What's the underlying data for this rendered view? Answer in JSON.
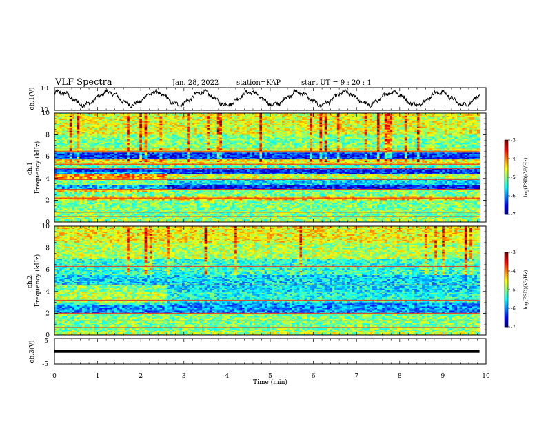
{
  "header": {
    "title": "VLF Spectra",
    "date": "Jan. 28, 2022",
    "station": "station=KAP",
    "start": "start UT = 9 : 20 : 1"
  },
  "chart_data": [
    {
      "type": "line",
      "panel": "ch1",
      "ylabel": "ch.1(V)",
      "ylim": [
        -10,
        10
      ],
      "yticks": [
        "10",
        "-10"
      ],
      "xlim": [
        0,
        10
      ],
      "x_end": 9.85,
      "period_min": 1.1,
      "amplitude_v": 5.5,
      "offset_v": 0.5,
      "color": "#000000"
    },
    {
      "type": "heatmap",
      "panel": "ch1-spectrogram",
      "ylabel": "ch.1 Frequency (kHz)",
      "ylim": [
        0,
        10
      ],
      "yticks": [
        "0",
        "2",
        "4",
        "6",
        "8",
        "10"
      ],
      "xlim": [
        0,
        10
      ],
      "x_end": 9.85,
      "colorbar": {
        "label": "log(PSD)(V²/Hz)",
        "ticks": [
          "-3",
          "-4",
          "-5",
          "-6",
          "-7"
        ],
        "range": [
          -7,
          -3
        ]
      },
      "bands": [
        {
          "f": [
            0,
            0.4
          ],
          "level": -4.9
        },
        {
          "f": [
            0.4,
            2.0
          ],
          "level": -5.0
        },
        {
          "f": [
            2.0,
            2.4
          ],
          "level": -4.3
        },
        {
          "f": [
            2.4,
            3.0
          ],
          "level": -5.0
        },
        {
          "f": [
            3.0,
            3.4
          ],
          "level": -6.4
        },
        {
          "f": [
            3.4,
            4.0
          ],
          "level": -5.6
        },
        {
          "f": [
            4.0,
            4.4
          ],
          "level": -4.7
        },
        {
          "f": [
            4.4,
            5.0
          ],
          "level": -6.3
        },
        {
          "f": [
            5.0,
            5.3
          ],
          "level": -5.2
        },
        {
          "f": [
            5.3,
            5.7
          ],
          "level": -4.5
        },
        {
          "f": [
            5.7,
            6.4
          ],
          "level": -6.3
        },
        {
          "f": [
            6.4,
            6.8
          ],
          "level": -4.7
        },
        {
          "f": [
            6.8,
            8.0
          ],
          "level": -5.0
        },
        {
          "f": [
            8.0,
            10.0
          ],
          "level": -4.6
        }
      ],
      "lines_khz": [
        0.5,
        0.9,
        2.2,
        3.0,
        3.9,
        4.9,
        5.3,
        6.5,
        6.8
      ],
      "early_change_min": 2.6
    },
    {
      "type": "heatmap",
      "panel": "ch2-spectrogram",
      "ylabel": "ch.2 Frequency (kHz)",
      "ylim": [
        0,
        10
      ],
      "yticks": [
        "0",
        "2",
        "4",
        "6",
        "8",
        "10"
      ],
      "xlim": [
        0,
        10
      ],
      "x_end": 9.85,
      "colorbar": {
        "label": "log(PSD)(V²/Hz)",
        "ticks": [
          "-3",
          "-4",
          "-5",
          "-6",
          "-7"
        ],
        "range": [
          -7,
          -3
        ]
      },
      "bands": [
        {
          "f": [
            0,
            0.4
          ],
          "level": -4.8
        },
        {
          "f": [
            0.4,
            1.4
          ],
          "level": -5.0
        },
        {
          "f": [
            1.4,
            2.0
          ],
          "level": -5.0
        },
        {
          "f": [
            2.0,
            3.0
          ],
          "level": -5.9
        },
        {
          "f": [
            3.0,
            4.0
          ],
          "level": -5.4
        },
        {
          "f": [
            4.0,
            5.5
          ],
          "level": -5.6
        },
        {
          "f": [
            5.5,
            7.0
          ],
          "level": -5.3
        },
        {
          "f": [
            7.0,
            8.5
          ],
          "level": -4.8
        },
        {
          "f": [
            8.5,
            10.0
          ],
          "level": -4.5
        }
      ],
      "lines_khz": [
        0.7,
        1.3,
        2.0,
        3.2,
        4.6,
        6.3
      ],
      "early_change_min": 2.6
    },
    {
      "type": "line",
      "panel": "ch3",
      "ylabel": "ch.3(V)",
      "ylim": [
        -5,
        5
      ],
      "yticks": [
        "5",
        "-5"
      ],
      "xlim": [
        0,
        10
      ],
      "x_end": 9.85,
      "level_v": 0,
      "amplitude_v": 0.6,
      "color": "#000000"
    }
  ],
  "xaxis": {
    "label": "Time (min)",
    "ticks": [
      "0",
      "1",
      "2",
      "3",
      "4",
      "5",
      "6",
      "7",
      "8",
      "9",
      "10"
    ],
    "xlim": [
      0,
      10
    ]
  }
}
